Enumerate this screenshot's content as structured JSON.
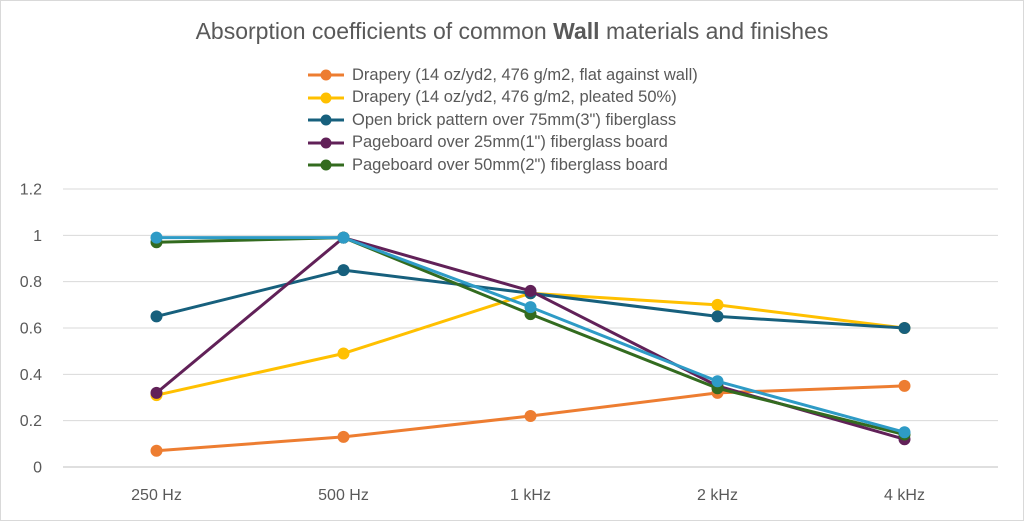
{
  "chart_data": {
    "type": "line",
    "title": "Absorption coefficients of common Wall materials and finishes",
    "title_parts": {
      "before": "Absorption coefficients of common ",
      "bold": "Wall",
      "after": " materials and finishes"
    },
    "xlabel": "",
    "ylabel": "",
    "categories": [
      "250 Hz",
      "500 Hz",
      "1 kHz",
      "2 kHz",
      "4 kHz"
    ],
    "ylim": [
      0,
      1.2
    ],
    "yticks": [
      "0",
      "0.2",
      "0.4",
      "0.6",
      "0.8",
      "1",
      "1.2"
    ],
    "grid": true,
    "legend_position": "top",
    "series": [
      {
        "name": "Drapery (14 oz/yd2, 476 g/m2, flat against wall)",
        "color": "#ED7D31",
        "values": [
          0.07,
          0.13,
          0.22,
          0.32,
          0.35
        ]
      },
      {
        "name": "Drapery (14 oz/yd2, 476 g/m2, pleated 50%)",
        "color": "#FFC000",
        "values": [
          0.31,
          0.49,
          0.75,
          0.7,
          0.6
        ]
      },
      {
        "name": "Open brick pattern over 75mm(3\") fiberglass",
        "color": "#17607D",
        "values": [
          0.65,
          0.85,
          0.75,
          0.65,
          0.6
        ]
      },
      {
        "name": "Pageboard over 25mm(1\") fiberglass board",
        "color": "#612158",
        "values": [
          0.32,
          0.99,
          0.76,
          0.35,
          0.12
        ]
      },
      {
        "name": "Pageboard over 50mm(2\") fiberglass board",
        "color": "#336B1F",
        "values": [
          0.97,
          0.99,
          0.66,
          0.34,
          0.14
        ]
      },
      {
        "name": "",
        "color": "#2E9BC6",
        "values": [
          0.99,
          0.99,
          0.69,
          0.37,
          0.15
        ]
      }
    ]
  }
}
